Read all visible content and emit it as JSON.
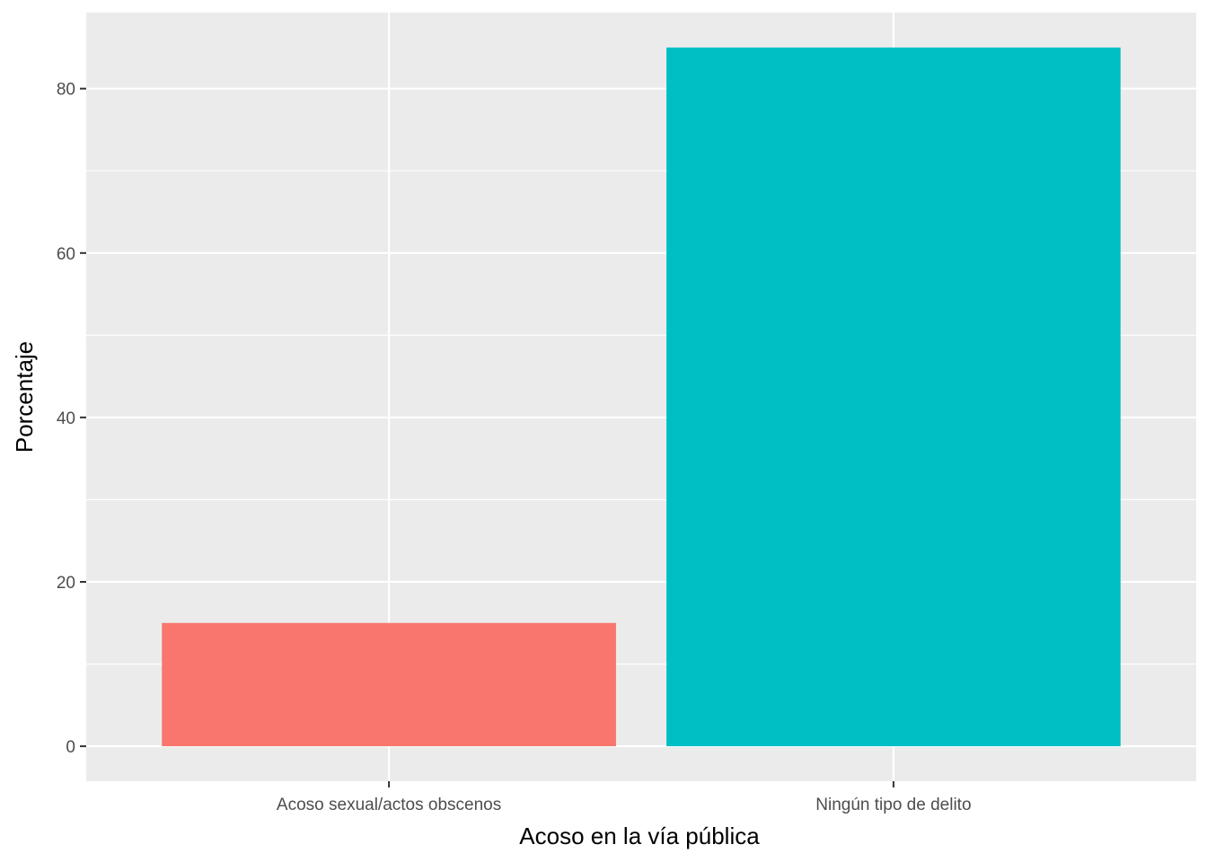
{
  "chart_data": {
    "type": "bar",
    "categories": [
      "Acoso sexual/actos obscenos",
      "Ningún tipo de delito"
    ],
    "values": [
      15.0,
      85.0
    ],
    "colors": [
      "#F8766D",
      "#00BFC4"
    ],
    "xlabel": "Acoso en la vía pública",
    "ylabel": "Porcentaje",
    "ylim": [
      -4.25,
      89.25
    ],
    "yticks": [
      0,
      20,
      40,
      60,
      80
    ],
    "yticks_labels": [
      "0",
      "20",
      "40",
      "60",
      "80"
    ],
    "grid": true,
    "panel_background": "#EBEBEB",
    "gridline_color": "#FFFFFF",
    "legend": "none"
  }
}
